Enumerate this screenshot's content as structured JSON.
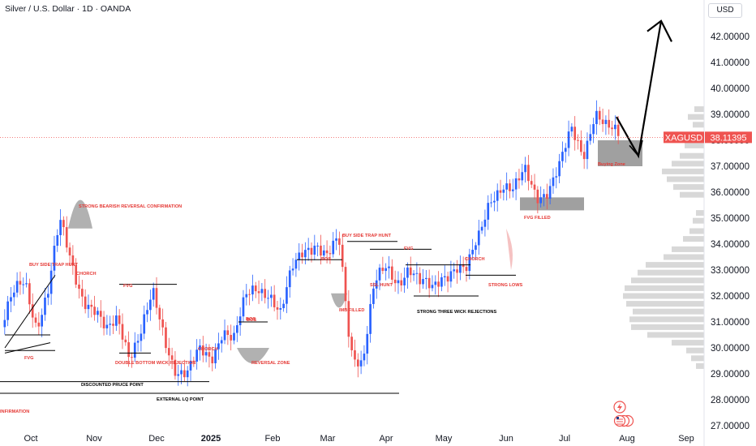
{
  "header": {
    "title": "Silver / U.S. Dollar · 1D · OANDA",
    "currency": "USD"
  },
  "price_tag": {
    "symbol": "XAGUSD",
    "price": "38.11395"
  },
  "colors": {
    "up": "#2962ff",
    "down": "#ef5350",
    "annotation": "#e53935",
    "zone": "#8f8f8f",
    "profile": "#c8c8c8"
  },
  "chart_data": {
    "type": "candlestick",
    "title": "Silver / U.S. Dollar · 1D · OANDA",
    "ylim": [
      27,
      43
    ],
    "y_ticks": [
      "27.00000",
      "28.00000",
      "29.00000",
      "30.00000",
      "31.00000",
      "32.00000",
      "33.00000",
      "34.00000",
      "35.00000",
      "36.00000",
      "37.00000",
      "38.00000",
      "39.00000",
      "40.00000",
      "41.00000",
      "42.00000"
    ],
    "x_ticks": [
      {
        "label": "Oct",
        "bold": false
      },
      {
        "label": "Nov",
        "bold": false
      },
      {
        "label": "Dec",
        "bold": false
      },
      {
        "label": "2025",
        "bold": true
      },
      {
        "label": "Feb",
        "bold": false
      },
      {
        "label": "Mar",
        "bold": false
      },
      {
        "label": "Apr",
        "bold": false
      },
      {
        "label": "May",
        "bold": false
      },
      {
        "label": "Jun",
        "bold": false
      },
      {
        "label": "Jul",
        "bold": false
      },
      {
        "label": "Aug",
        "bold": false
      },
      {
        "label": "Sep",
        "bold": false
      }
    ],
    "path_points": [
      [
        30.8,
        "Oct"
      ],
      [
        31.9,
        "Oct"
      ],
      [
        32.6,
        "Oct"
      ],
      [
        31.0,
        "Oct"
      ],
      [
        32.2,
        "Oct"
      ],
      [
        34.7,
        "Nov"
      ],
      [
        33.3,
        "Nov"
      ],
      [
        32.1,
        "Nov"
      ],
      [
        31.4,
        "Nov"
      ],
      [
        30.4,
        "Nov"
      ],
      [
        31.2,
        "Dec"
      ],
      [
        29.9,
        "Dec"
      ],
      [
        30.6,
        "Dec"
      ],
      [
        31.9,
        "Dec"
      ],
      [
        30.4,
        "Dec"
      ],
      [
        29.3,
        "Dec"
      ],
      [
        29.0,
        "2025"
      ],
      [
        29.7,
        "2025"
      ],
      [
        29.6,
        "2025"
      ],
      [
        30.9,
        "Feb"
      ],
      [
        30.3,
        "Feb"
      ],
      [
        31.8,
        "Feb"
      ],
      [
        32.4,
        "Feb"
      ],
      [
        32.3,
        "Mar"
      ],
      [
        31.2,
        "Mar"
      ],
      [
        32.9,
        "Mar"
      ],
      [
        33.9,
        "Mar"
      ],
      [
        34.2,
        "Apr"
      ],
      [
        33.4,
        "Apr"
      ],
      [
        34.0,
        "Apr"
      ],
      [
        30.0,
        "Apr"
      ],
      [
        29.6,
        "Apr"
      ],
      [
        32.3,
        "Apr"
      ],
      [
        32.9,
        "May"
      ],
      [
        32.6,
        "May"
      ],
      [
        33.3,
        "May"
      ],
      [
        32.4,
        "May"
      ],
      [
        32.1,
        "May"
      ],
      [
        32.9,
        "May"
      ],
      [
        33.3,
        "Jun"
      ],
      [
        32.9,
        "Jun"
      ],
      [
        34.1,
        "Jun"
      ],
      [
        35.9,
        "Jun"
      ],
      [
        36.4,
        "Jun"
      ],
      [
        35.9,
        "Jul"
      ],
      [
        36.7,
        "Jul"
      ],
      [
        36.0,
        "Jul"
      ],
      [
        36.2,
        "Jul"
      ],
      [
        36.9,
        "Jul"
      ],
      [
        38.3,
        "Jul"
      ],
      [
        37.6,
        "Jul"
      ],
      [
        39.2,
        "Aug"
      ],
      [
        38.3,
        "Aug"
      ],
      [
        38.1,
        "Aug"
      ]
    ],
    "last_price": 38.11395,
    "annotations": [
      "STRONG BEARISH REVERSAL CONFIRMATION",
      "BUY SIDE TRAP HUNT",
      "CHORCH",
      "FVG",
      "BOS",
      "FVG",
      "DOUBLE BOTTOM WICK REJECTION",
      "CHORCH",
      "BOS",
      "REVERSAL ZONE",
      "DISCOUNTED PRUCE POINT",
      "EXTERNAL LQ POINT",
      "INFIRMATION",
      "BOS",
      "IMB FILLED",
      "BUY SIDE TRAP HUNT",
      "FVG",
      "SSL HUNT",
      "STRONG THREE WICK REJECTIONS",
      "CHORCH",
      "STRONG LOWS",
      "FVG FILLED",
      "Buying Zone"
    ]
  }
}
